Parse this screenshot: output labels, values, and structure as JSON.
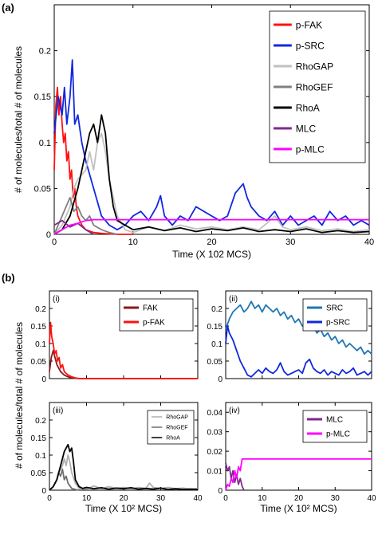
{
  "figure": {
    "panel_a_label": "(a)",
    "panel_b_label": "(b)",
    "shared_ylabel_b": "# of molecules/total # of molecules"
  },
  "chart_data": [
    {
      "id": "a",
      "type": "line",
      "title": "",
      "xlabel": "Time (X 102 MCS)",
      "ylabel": "# of molecules/total # of molecules",
      "xlim": [
        0,
        40
      ],
      "ylim": [
        0,
        0.25
      ],
      "xticks": [
        "0",
        "10",
        "20",
        "30",
        "40"
      ],
      "yticks": [
        "0",
        "0.05",
        "0.1",
        "0.15",
        "0.2"
      ],
      "grid": false,
      "legend": "top-right",
      "series": [
        {
          "name": "p-FAK",
          "color": "#ff1010",
          "x": [
            0,
            0.2,
            0.4,
            0.6,
            0.8,
            1,
            1.2,
            1.4,
            1.6,
            1.8,
            2,
            2.2,
            2.4,
            2.6,
            2.8,
            3,
            3.5,
            4,
            5,
            6,
            8,
            10
          ],
          "y": [
            0.07,
            0.14,
            0.16,
            0.13,
            0.15,
            0.12,
            0.1,
            0.11,
            0.08,
            0.09,
            0.06,
            0.07,
            0.04,
            0.05,
            0.03,
            0.02,
            0.01,
            0.005,
            0.002,
            0.001,
            0,
            0
          ]
        },
        {
          "name": "p-SRC",
          "color": "#1028e0",
          "x": [
            0,
            0.5,
            1,
            1.3,
            1.6,
            2,
            2.3,
            2.6,
            3,
            3.5,
            4,
            5,
            6,
            7,
            8,
            9,
            10,
            11,
            12,
            13,
            13.5,
            14,
            15,
            16,
            17,
            18,
            19,
            20,
            21,
            22,
            23,
            24,
            24.5,
            25,
            26,
            27,
            28,
            29,
            30,
            31,
            32,
            33,
            34,
            35,
            36,
            37,
            38,
            39,
            40
          ],
          "y": [
            0.11,
            0.15,
            0.13,
            0.16,
            0.12,
            0.15,
            0.19,
            0.12,
            0.13,
            0.1,
            0.08,
            0.05,
            0.02,
            0.01,
            0.005,
            0.01,
            0.02,
            0.025,
            0.015,
            0.03,
            0.042,
            0.02,
            0.01,
            0.02,
            0.015,
            0.03,
            0.025,
            0.02,
            0.015,
            0.02,
            0.045,
            0.055,
            0.04,
            0.03,
            0.02,
            0.015,
            0.025,
            0.01,
            0.02,
            0.01,
            0.015,
            0.02,
            0.01,
            0.025,
            0.015,
            0.02,
            0.01,
            0.015,
            0.01
          ]
        },
        {
          "name": "RhoGAP",
          "color": "#c0c0c0",
          "x": [
            0,
            1,
            2,
            2.5,
            3,
            4,
            4.5,
            5,
            5.5,
            6,
            6.5,
            7,
            8,
            9,
            10,
            12,
            14,
            16,
            18,
            20,
            22,
            24,
            26,
            27,
            28,
            29,
            30,
            32,
            34,
            36,
            38,
            40
          ],
          "y": [
            0.0,
            0.01,
            0.03,
            0.05,
            0.06,
            0.07,
            0.09,
            0.07,
            0.1,
            0.11,
            0.09,
            0.06,
            0.02,
            0.005,
            0.002,
            0.008,
            0.004,
            0.01,
            0.006,
            0.008,
            0.005,
            0.008,
            0.005,
            0.012,
            0.02,
            0.008,
            0.005,
            0.008,
            0.004,
            0.006,
            0.003,
            0.005
          ]
        },
        {
          "name": "RhoGEF",
          "color": "#808080",
          "x": [
            0,
            0.5,
            1,
            1.5,
            2,
            2.5,
            3,
            3.5,
            4,
            4.5,
            5,
            6,
            7,
            8
          ],
          "y": [
            0.0,
            0.01,
            0.02,
            0.03,
            0.04,
            0.025,
            0.03,
            0.02,
            0.015,
            0.02,
            0.01,
            0.005,
            0.002,
            0
          ]
        },
        {
          "name": "RhoA",
          "color": "#000000",
          "x": [
            0,
            1,
            2,
            3,
            3.5,
            4,
            4.5,
            5,
            5.5,
            6,
            6.5,
            7,
            7.5,
            8,
            9,
            10,
            12,
            14,
            16,
            18,
            20,
            22,
            24,
            26,
            28,
            30,
            32,
            34,
            36,
            38,
            40
          ],
          "y": [
            0.0,
            0.005,
            0.02,
            0.05,
            0.07,
            0.09,
            0.11,
            0.12,
            0.1,
            0.13,
            0.11,
            0.06,
            0.03,
            0.015,
            0.01,
            0.005,
            0.008,
            0.004,
            0.007,
            0.003,
            0.006,
            0.004,
            0.007,
            0.003,
            0.005,
            0.003,
            0.006,
            0.002,
            0.004,
            0.002,
            0.003
          ]
        },
        {
          "name": "MLC",
          "color": "#7f2a8f",
          "x": [
            0,
            1,
            2,
            3,
            4,
            5
          ],
          "y": [
            0.01,
            0.015,
            0.008,
            0.012,
            0.005,
            0.0
          ]
        },
        {
          "name": "p-MLC",
          "color": "#ff00ff",
          "x": [
            0,
            1,
            2,
            3,
            4,
            5,
            6,
            40
          ],
          "y": [
            0.0,
            0.005,
            0.01,
            0.012,
            0.015,
            0.016,
            0.016,
            0.016
          ]
        }
      ]
    },
    {
      "id": "b-i",
      "panel_label": "(i)",
      "type": "line",
      "xlabel": "",
      "xlim": [
        0,
        40
      ],
      "ylim": [
        0,
        0.25
      ],
      "xticks": [],
      "yticks": [
        "0",
        "0.05",
        "0.1",
        "0.15",
        "0.2"
      ],
      "legend": "top-right",
      "series": [
        {
          "name": "FAK",
          "color": "#8b1a1a",
          "x": [
            0,
            0.5,
            1,
            1.5,
            2,
            2.5,
            3,
            4,
            5,
            6,
            8,
            40
          ],
          "y": [
            0.02,
            0.06,
            0.08,
            0.06,
            0.04,
            0.03,
            0.02,
            0.01,
            0.005,
            0.002,
            0.0,
            0.0
          ]
        },
        {
          "name": "p-FAK",
          "color": "#ff1010",
          "x": [
            0,
            0.3,
            0.6,
            1,
            1.4,
            1.8,
            2.2,
            2.6,
            3,
            3.5,
            4,
            4.5,
            5,
            6,
            7,
            8,
            40
          ],
          "y": [
            0.1,
            0.16,
            0.12,
            0.1,
            0.07,
            0.08,
            0.05,
            0.06,
            0.03,
            0.04,
            0.02,
            0.015,
            0.01,
            0.005,
            0.002,
            0.0,
            0.0
          ]
        }
      ]
    },
    {
      "id": "b-ii",
      "panel_label": "(ii)",
      "type": "line",
      "xlabel": "",
      "xlim": [
        0,
        40
      ],
      "ylim": [
        0,
        0.25
      ],
      "xticks": [],
      "yticks": [
        "0",
        "0.05",
        "0.1",
        "0.15",
        "0.2"
      ],
      "legend": "top-right",
      "series": [
        {
          "name": "SRC",
          "color": "#1f77b4",
          "x": [
            0,
            1,
            2,
            3,
            4,
            5,
            6,
            7,
            8,
            9,
            10,
            11,
            12,
            13,
            14,
            15,
            16,
            17,
            18,
            19,
            20,
            21,
            22,
            23,
            24,
            25,
            26,
            27,
            28,
            29,
            30,
            31,
            32,
            33,
            34,
            35,
            36,
            37,
            38,
            39,
            40
          ],
          "y": [
            0.14,
            0.17,
            0.19,
            0.2,
            0.21,
            0.19,
            0.2,
            0.22,
            0.2,
            0.21,
            0.19,
            0.21,
            0.2,
            0.19,
            0.2,
            0.18,
            0.19,
            0.17,
            0.18,
            0.16,
            0.17,
            0.15,
            0.16,
            0.14,
            0.15,
            0.13,
            0.14,
            0.12,
            0.13,
            0.11,
            0.12,
            0.1,
            0.11,
            0.09,
            0.1,
            0.09,
            0.08,
            0.09,
            0.07,
            0.08,
            0.07
          ]
        },
        {
          "name": "p-SRC",
          "color": "#1028e0",
          "x": [
            0,
            0.5,
            1,
            2,
            3,
            4,
            5,
            6,
            7,
            8,
            9,
            10,
            11,
            12,
            13,
            14,
            15,
            16,
            17,
            18,
            19,
            20,
            21,
            22,
            23,
            24,
            25,
            26,
            27,
            28,
            29,
            30,
            31,
            32,
            33,
            34,
            35,
            36,
            37,
            38,
            39,
            40
          ],
          "y": [
            0.1,
            0.15,
            0.13,
            0.11,
            0.08,
            0.05,
            0.03,
            0.01,
            0.005,
            0.015,
            0.025,
            0.015,
            0.03,
            0.02,
            0.015,
            0.025,
            0.045,
            0.02,
            0.01,
            0.015,
            0.02,
            0.025,
            0.015,
            0.045,
            0.055,
            0.03,
            0.02,
            0.015,
            0.025,
            0.01,
            0.02,
            0.015,
            0.01,
            0.025,
            0.015,
            0.02,
            0.03,
            0.01,
            0.015,
            0.02,
            0.01,
            0.02
          ]
        }
      ]
    },
    {
      "id": "b-iii",
      "panel_label": "(iii)",
      "type": "line",
      "xlabel": "Time (X 10² MCS)",
      "xlim": [
        0,
        40
      ],
      "ylim": [
        0,
        0.25
      ],
      "xticks": [
        "0",
        "10",
        "20",
        "30",
        "40"
      ],
      "yticks": [
        "0",
        "0.05",
        "0.1",
        "0.15",
        "0.2"
      ],
      "legend": "top-right",
      "series": [
        {
          "name": "RhoGAP",
          "color": "#b0b0b0",
          "x": [
            0,
            1,
            2,
            2.5,
            3,
            3.5,
            4,
            4.5,
            5,
            5.5,
            6,
            7,
            8,
            10,
            12,
            14,
            16,
            18,
            20,
            22,
            24,
            26,
            27,
            28,
            30,
            32,
            34,
            36,
            38,
            40
          ],
          "y": [
            0.0,
            0.01,
            0.03,
            0.05,
            0.06,
            0.07,
            0.09,
            0.07,
            0.1,
            0.08,
            0.05,
            0.02,
            0.005,
            0.003,
            0.012,
            0.004,
            0.01,
            0.005,
            0.008,
            0.004,
            0.008,
            0.005,
            0.02,
            0.008,
            0.005,
            0.008,
            0.004,
            0.006,
            0.003,
            0.005
          ]
        },
        {
          "name": "RhoGEF",
          "color": "#707070",
          "x": [
            0,
            1,
            2,
            2.5,
            3,
            3.5,
            4,
            4.5,
            5,
            6,
            7,
            8
          ],
          "y": [
            0.0,
            0.01,
            0.03,
            0.05,
            0.04,
            0.06,
            0.03,
            0.04,
            0.02,
            0.005,
            0.002,
            0.0
          ]
        },
        {
          "name": "RhoA",
          "color": "#000000",
          "x": [
            0,
            1,
            2,
            3,
            3.5,
            4,
            4.5,
            5,
            5.5,
            6,
            6.5,
            7,
            8,
            9,
            10,
            12,
            14,
            16,
            18,
            20,
            22,
            24,
            26,
            28,
            30,
            32,
            34,
            36,
            38,
            40
          ],
          "y": [
            0.0,
            0.01,
            0.03,
            0.07,
            0.09,
            0.11,
            0.12,
            0.13,
            0.11,
            0.12,
            0.08,
            0.03,
            0.01,
            0.005,
            0.008,
            0.004,
            0.007,
            0.003,
            0.006,
            0.004,
            0.007,
            0.003,
            0.005,
            0.003,
            0.006,
            0.002,
            0.004,
            0.002,
            0.003,
            0.002
          ]
        }
      ]
    },
    {
      "id": "b-iv",
      "panel_label": "(iv)",
      "type": "line",
      "xlabel": "Time (X 10² MCS)",
      "xlim": [
        0,
        40
      ],
      "ylim": [
        0,
        0.045
      ],
      "xticks": [
        "0",
        "10",
        "20",
        "30",
        "40"
      ],
      "yticks": [
        "0",
        "0.01",
        "0.02",
        "0.03",
        "0.04"
      ],
      "legend": "top-right",
      "series": [
        {
          "name": "MLC",
          "color": "#7f2a8f",
          "x": [
            0,
            0.5,
            1,
            1.5,
            2,
            2.5,
            3,
            3.5,
            4,
            4.5,
            5
          ],
          "y": [
            0.014,
            0.01,
            0.012,
            0.006,
            0.01,
            0.004,
            0.008,
            0.003,
            0.006,
            0.002,
            0.0
          ]
        },
        {
          "name": "p-MLC",
          "color": "#ff00ff",
          "x": [
            0,
            0.5,
            1,
            1.5,
            2,
            2.5,
            3,
            3.5,
            4,
            4.5,
            5,
            40
          ],
          "y": [
            0.0,
            0.003,
            0.002,
            0.006,
            0.004,
            0.01,
            0.006,
            0.012,
            0.01,
            0.016,
            0.016,
            0.016
          ]
        }
      ]
    }
  ]
}
